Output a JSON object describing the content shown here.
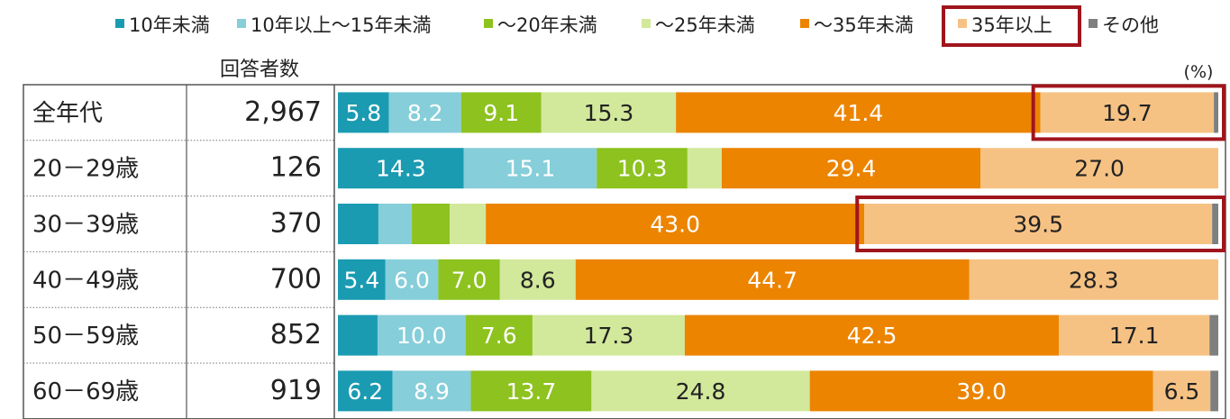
{
  "chart_data": {
    "type": "bar",
    "orientation": "horizontal",
    "stacked": true,
    "percent_stacked": true,
    "unit_label": "(%)",
    "count_header": "回答者数",
    "legend_placement": "top",
    "categories": [
      "全年代",
      "20－29歳",
      "30－39歳",
      "40－49歳",
      "50－59歳",
      "60－69歳"
    ],
    "counts": [
      "2,967",
      "126",
      "370",
      "700",
      "852",
      "919"
    ],
    "series": [
      {
        "name": "10年未満",
        "color": "#1a9bb2",
        "label_color": "#ffffff",
        "values": [
          5.8,
          14.3,
          4.6,
          5.4,
          4.5,
          6.2
        ],
        "labels": [
          "5.8",
          "14.3",
          "",
          "5.4",
          "",
          "6.2"
        ]
      },
      {
        "name": "10年以上～15年未満",
        "color": "#86ced9",
        "label_color": "#ffffff",
        "values": [
          8.2,
          15.1,
          3.8,
          6.0,
          10.0,
          8.9
        ],
        "labels": [
          "8.2",
          "15.1",
          "",
          "6.0",
          "10.0",
          "8.9"
        ]
      },
      {
        "name": "～20年未満",
        "color": "#8dc21f",
        "label_color": "#ffffff",
        "values": [
          9.1,
          10.3,
          4.3,
          7.0,
          7.6,
          13.7
        ],
        "labels": [
          "9.1",
          "10.3",
          "",
          "7.0",
          "7.6",
          "13.7"
        ]
      },
      {
        "name": "～25年未満",
        "color": "#d2e89b",
        "label_color": "#222222",
        "values": [
          15.3,
          3.9,
          4.1,
          8.6,
          17.3,
          24.8
        ],
        "labels": [
          "15.3",
          "",
          "",
          "8.6",
          "17.3",
          "24.8"
        ]
      },
      {
        "name": "～35年未満",
        "color": "#ec8400",
        "label_color": "#ffffff",
        "values": [
          41.4,
          29.4,
          43.0,
          44.7,
          42.5,
          39.0
        ],
        "labels": [
          "41.4",
          "29.4",
          "43.0",
          "44.7",
          "42.5",
          "39.0"
        ]
      },
      {
        "name": "35年以上",
        "color": "#f6c283",
        "label_color": "#222222",
        "values": [
          19.7,
          27.0,
          39.5,
          28.3,
          17.1,
          6.5
        ],
        "labels": [
          "19.7",
          "27.0",
          "39.5",
          "28.3",
          "17.1",
          "6.5"
        ]
      },
      {
        "name": "その他",
        "color": "#7f7f7f",
        "label_color": "#ffffff",
        "values": [
          0.5,
          0.0,
          0.7,
          0.0,
          1.0,
          0.9
        ],
        "labels": [
          "",
          "",
          "",
          "",
          "",
          ""
        ]
      }
    ],
    "xlim": [
      0,
      100
    ],
    "highlight_color": "#a0151c",
    "highlighted_legend_entry": "35年以上",
    "highlighted_segments": [
      {
        "category": "全年代",
        "series": "35年以上"
      },
      {
        "category": "30－39歳",
        "series": "35年以上"
      }
    ]
  }
}
